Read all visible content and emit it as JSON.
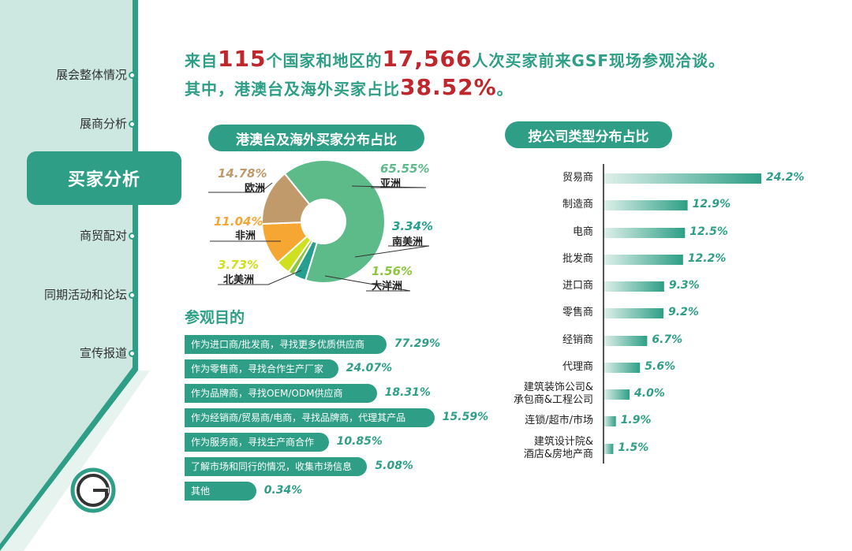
{
  "colors": {
    "accent": "#2e9f86",
    "highlight": "#c0272d",
    "sidebar": "#cce8e1"
  },
  "sidebar": {
    "items": [
      {
        "label": "展会整体情况"
      },
      {
        "label": "展商分析"
      },
      {
        "label": "买家分析"
      },
      {
        "label": "商贸配对"
      },
      {
        "label": "同期活动和论坛"
      },
      {
        "label": "宣传报道"
      }
    ],
    "active_label": "买家分析"
  },
  "headline": {
    "line1_a": "来自",
    "line1_num1": "115",
    "line1_b": "个国家和地区的",
    "line1_num2": "17,566",
    "line1_c": "人次买家前来GSF现场参观洽谈。",
    "line2_a": "其中，港澳台及海外买家占比",
    "line2_num": "38.52%",
    "line2_b": "。"
  },
  "chart_data": [
    {
      "type": "pie",
      "title": "港澳台及海外买家分布占比",
      "slices": [
        {
          "label": "亚洲",
          "value": 65.55,
          "display": "65.55%",
          "color": "#5dbb8a"
        },
        {
          "label": "南美洲",
          "value": 3.34,
          "display": "3.34%",
          "color": "#25a08e"
        },
        {
          "label": "大洋洲",
          "value": 1.56,
          "display": "1.56%",
          "color": "#8cc63f"
        },
        {
          "label": "北美洲",
          "value": 3.73,
          "display": "3.73%",
          "color": "#cfe01f"
        },
        {
          "label": "非洲",
          "value": 11.04,
          "display": "11.04%",
          "color": "#f6a633"
        },
        {
          "label": "欧洲",
          "value": 14.78,
          "display": "14.78%",
          "color": "#c19a6b"
        }
      ]
    },
    {
      "type": "bar",
      "title": "参观目的",
      "categories": [
        "作为进口商/批发商，寻找更多优质供应商",
        "作为零售商，寻找合作生产厂家",
        "作为品牌商，寻找OEM/ODM供应商",
        "作为经销商/贸易商/电商，寻找品牌商，代理其产品",
        "作为服务商，寻找生产商合作",
        "了解市场和同行的情况，收集市场信息",
        "其他"
      ],
      "values": [
        77.29,
        24.07,
        18.31,
        15.59,
        10.85,
        5.08,
        0.34
      ],
      "display": [
        "77.29%",
        "24.07%",
        "18.31%",
        "15.59%",
        "10.85%",
        "5.08%",
        "0.34%"
      ]
    },
    {
      "type": "bar",
      "title": "按公司类型分布占比",
      "categories": [
        "贸易商",
        "制造商",
        "电商",
        "批发商",
        "进口商",
        "零售商",
        "经销商",
        "代理商",
        "建筑装饰公司&\n承包商&工程公司",
        "连锁/超市/市场",
        "建筑设计院&\n酒店&房地产商"
      ],
      "values": [
        24.2,
        12.9,
        12.5,
        12.2,
        9.3,
        9.2,
        6.7,
        5.6,
        4.0,
        1.9,
        1.5
      ],
      "display": [
        "24.2%",
        "12.9%",
        "12.5%",
        "12.2%",
        "9.3%",
        "9.2%",
        "6.7%",
        "5.6%",
        "4.0%",
        "1.9%",
        "1.5%"
      ]
    }
  ],
  "logo": {
    "icon": "gsf-g-logo-icon"
  }
}
